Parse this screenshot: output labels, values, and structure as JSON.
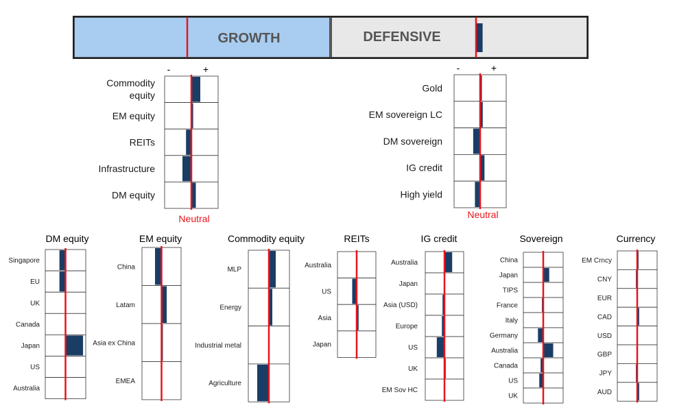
{
  "banner": {
    "growth_label": "GROWTH",
    "defensive_label": "DEFENSIVE",
    "growth_color": "#a9cdf0",
    "defensive_color": "#e8e8e8",
    "growth_marker": -1,
    "defensive_marker": 0.3
  },
  "colors": {
    "bar": "#1a3d66",
    "neutral": "#e8141c",
    "grid": "#333333"
  },
  "chart_data": [
    {
      "type": "bar",
      "orientation": "horizontal",
      "id": "growth",
      "title": "",
      "minus_label": "-",
      "plus_label": "+",
      "neutral_label": "Neutral",
      "xlim": [
        -3,
        3
      ],
      "categories": [
        "Commodity\nequity",
        "EM equity",
        "REITs",
        "Infrastructure",
        "DM equity"
      ],
      "values": [
        1,
        0.2,
        -0.6,
        -1.0,
        0.5
      ]
    },
    {
      "type": "bar",
      "orientation": "horizontal",
      "id": "defensive",
      "title": "",
      "minus_label": "-",
      "plus_label": "+",
      "neutral_label": "Neutral",
      "xlim": [
        -3,
        3
      ],
      "categories": [
        "Gold",
        "EM sovereign LC",
        "DM sovereign",
        "IG credit",
        "High yield"
      ],
      "values": [
        0.2,
        0.3,
        -0.8,
        0.5,
        -0.6
      ]
    },
    {
      "type": "bar",
      "orientation": "horizontal",
      "id": "dm-equity",
      "title": "DM equity",
      "xlim": [
        -3,
        3
      ],
      "categories": [
        "Singapore",
        "EU",
        "UK",
        "Canada",
        "Japan",
        "US",
        "Australia"
      ],
      "values": [
        -0.9,
        -0.9,
        0,
        0,
        2.6,
        0,
        0
      ]
    },
    {
      "type": "bar",
      "orientation": "horizontal",
      "id": "em-equity",
      "title": "EM equity",
      "xlim": [
        -3,
        3
      ],
      "categories": [
        "China",
        "Latam",
        "Asia ex China",
        "EMEA"
      ],
      "values": [
        -1.0,
        0.8,
        0.2,
        0
      ]
    },
    {
      "type": "bar",
      "orientation": "horizontal",
      "id": "commodity-equity",
      "title": "Commodity equity",
      "xlim": [
        -3,
        3
      ],
      "categories": [
        "MLP",
        "Energy",
        "Industrial metal",
        "Agriculture"
      ],
      "values": [
        1.0,
        0.5,
        0,
        -1.7
      ]
    },
    {
      "type": "bar",
      "orientation": "horizontal",
      "id": "reits",
      "title": "REITs",
      "xlim": [
        -3,
        3
      ],
      "categories": [
        "Australia",
        "US",
        "Asia",
        "Japan"
      ],
      "values": [
        0,
        -0.7,
        0.3,
        0.1
      ]
    },
    {
      "type": "bar",
      "orientation": "horizontal",
      "id": "ig-credit",
      "title": "IG credit",
      "xlim": [
        -3,
        3
      ],
      "categories": [
        "Australia",
        "Japan",
        "Asia (USD)",
        "Europe",
        "US",
        "UK",
        "EM Sov HC"
      ],
      "values": [
        1.2,
        0,
        -0.3,
        -0.4,
        -1.2,
        0.2,
        0
      ]
    },
    {
      "type": "bar",
      "orientation": "horizontal",
      "id": "sovereign",
      "title": "Sovereign",
      "xlim": [
        -3,
        3
      ],
      "categories": [
        "China",
        "Japan",
        "TIPS",
        "France",
        "Italy",
        "Germany",
        "Australia",
        "Canada",
        "US",
        "UK"
      ],
      "values": [
        0,
        0.9,
        0,
        -0.2,
        0,
        -0.8,
        1.5,
        -0.4,
        -0.6,
        0
      ]
    },
    {
      "type": "bar",
      "orientation": "horizontal",
      "id": "currency",
      "title": "Currency",
      "xlim": [
        -3,
        3
      ],
      "categories": [
        "EM Crncy",
        "CNY",
        "EUR",
        "CAD",
        "USD",
        "GBP",
        "JPY",
        "AUD"
      ],
      "values": [
        0.2,
        -0.2,
        0,
        0.3,
        -0.1,
        0,
        -0.2,
        0.3
      ]
    }
  ]
}
